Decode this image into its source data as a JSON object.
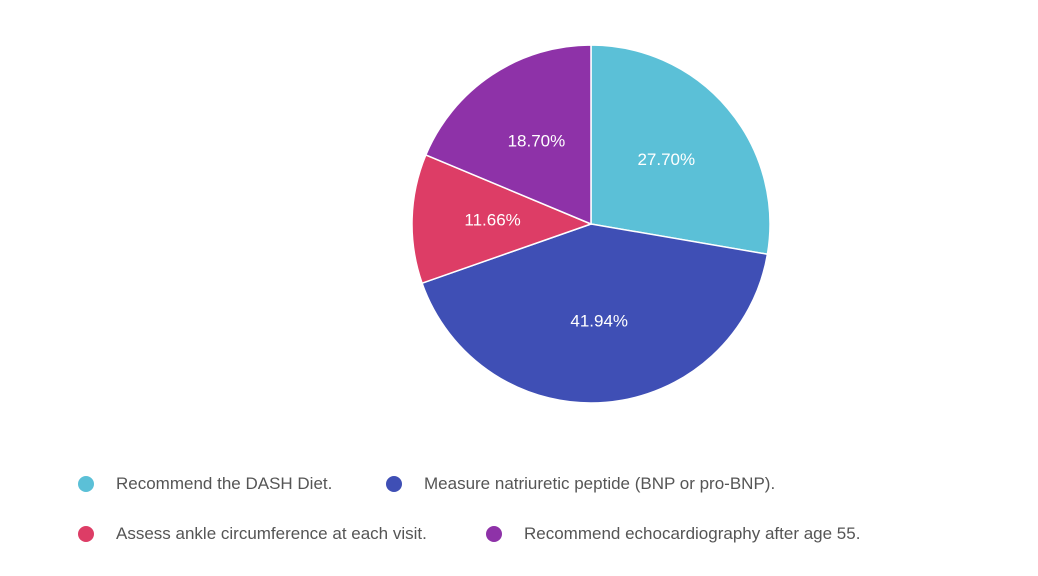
{
  "chart_data": {
    "type": "pie",
    "categories": [
      "Recommend the DASH Diet.",
      "Measure natriuretic peptide (BNP or pro-BNP).",
      "Assess ankle circumference at each visit.",
      "Recommend echocardiography after age 55."
    ],
    "values": [
      27.7,
      41.94,
      11.66,
      18.7
    ],
    "value_labels": [
      "27.70%",
      "41.94%",
      "11.66%",
      "18.70%"
    ],
    "colors": [
      "#5bc0d7",
      "#3f4fb5",
      "#dd3d66",
      "#8e32a8"
    ],
    "legend_position": "bottom",
    "start_angle": "top",
    "direction": "clockwise"
  }
}
